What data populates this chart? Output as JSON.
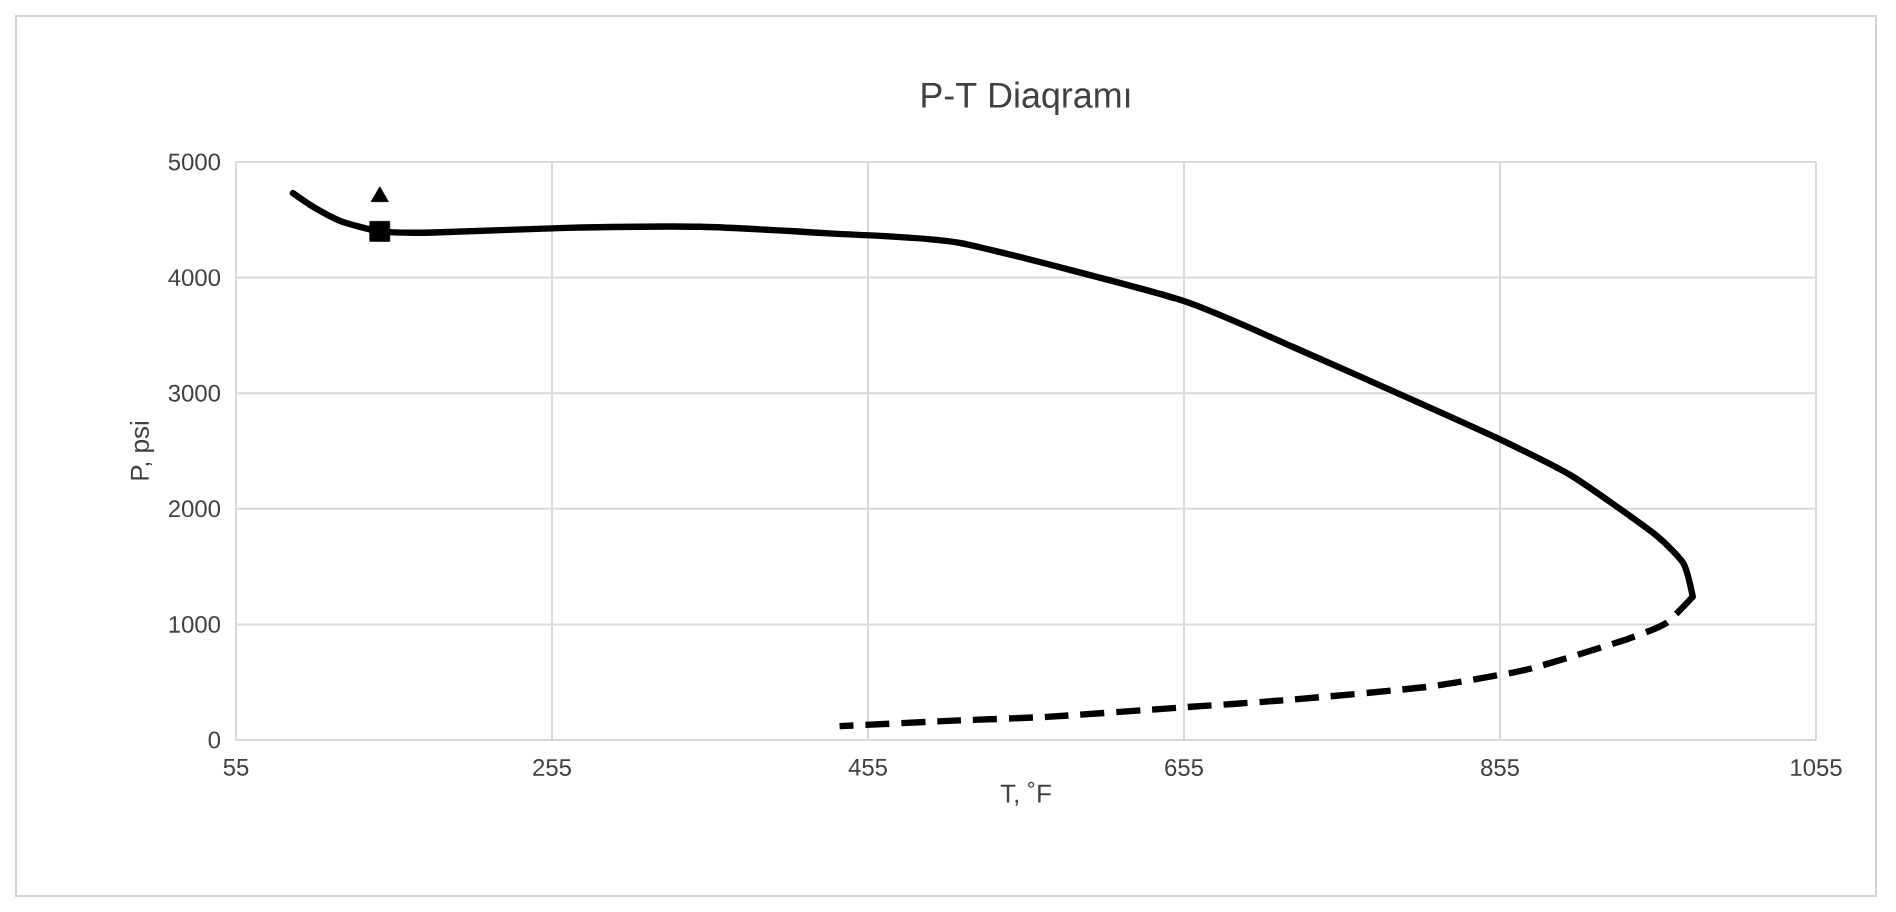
{
  "chart_data": {
    "type": "line",
    "title": "P-T Diaqramı",
    "xlabel": "T, ˚F",
    "ylabel": "P, psi",
    "xlim": [
      55,
      1055
    ],
    "xticks": [
      55,
      255,
      455,
      655,
      855,
      1055
    ],
    "ylim": [
      0,
      5000
    ],
    "yticks": [
      0,
      1000,
      2000,
      3000,
      4000,
      5000
    ],
    "grid": true,
    "series": [
      {
        "type": "line",
        "line_style": "solid",
        "marker": "none",
        "color": "#000000",
        "x": [
          91,
          104,
          121,
          146,
          180,
          264,
          349,
          433,
          513,
          652,
          724,
          800,
          855,
          901,
          952,
          971,
          977
        ],
        "values": [
          4730,
          4610,
          4490,
          4400,
          4390,
          4430,
          4440,
          4380,
          4300,
          3810,
          3400,
          2940,
          2600,
          2280,
          1790,
          1530,
          1240
        ]
      },
      {
        "type": "line",
        "line_style": "dashed",
        "marker": "none",
        "color": "#000000",
        "x": [
          977,
          960,
          935,
          872,
          809,
          724,
          652,
          568,
          513,
          437
        ],
        "values": [
          1240,
          1010,
          870,
          610,
          460,
          350,
          280,
          200,
          170,
          120
        ]
      },
      {
        "type": "scatter",
        "marker": "square",
        "color": "#000000",
        "x": [
          146
        ],
        "values": [
          4400
        ]
      },
      {
        "type": "scatter",
        "marker": "triangle",
        "color": "#000000",
        "x": [
          146
        ],
        "values": [
          4700
        ]
      }
    ]
  }
}
